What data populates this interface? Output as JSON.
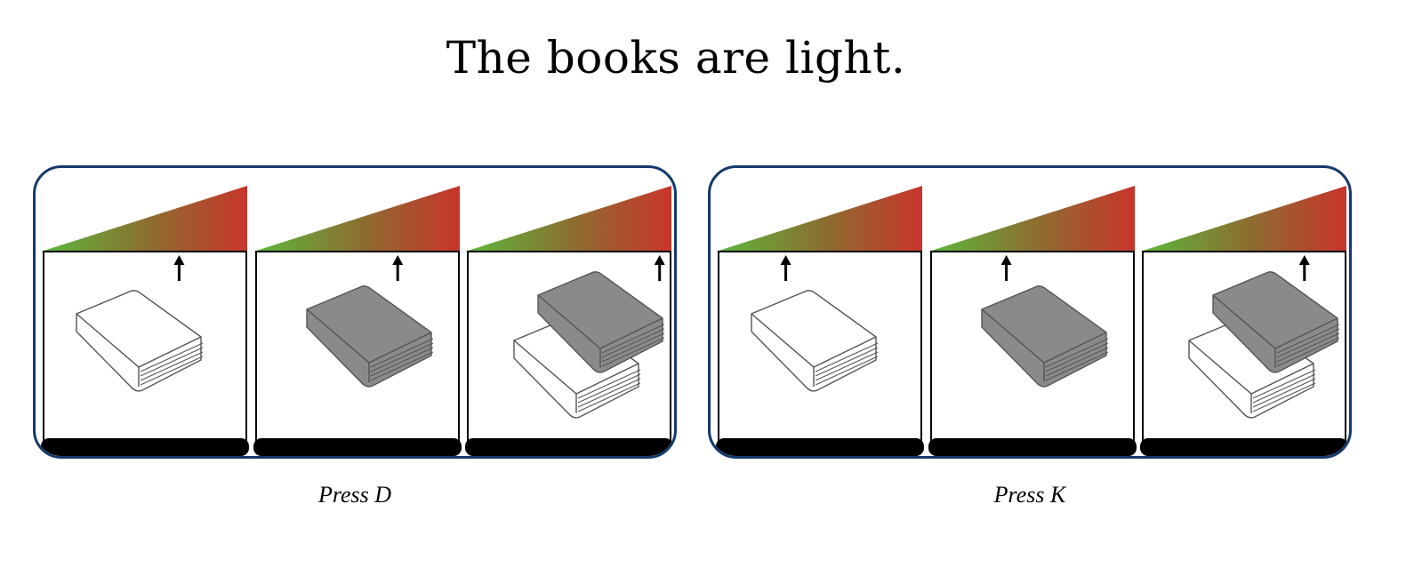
{
  "title": "The books are light.",
  "gradient": {
    "low_color": "#5cb83c",
    "mid_color": "#8f6a30",
    "high_color": "#c8352b"
  },
  "book_colors": {
    "light": "#ffffff",
    "heavy": "#8a8a8a",
    "outline": "#555555"
  },
  "options": [
    {
      "caption": "Press D",
      "panels": [
        {
          "book": "single-light-book",
          "indicator_level": 0.67
        },
        {
          "book": "single-heavy-book",
          "indicator_level": 0.7
        },
        {
          "book": "stacked-books",
          "indicator_level": 0.95
        }
      ]
    },
    {
      "caption": "Press K",
      "panels": [
        {
          "book": "single-light-book",
          "indicator_level": 0.33
        },
        {
          "book": "single-heavy-book",
          "indicator_level": 0.37
        },
        {
          "book": "stacked-books",
          "indicator_level": 0.8
        }
      ]
    }
  ]
}
